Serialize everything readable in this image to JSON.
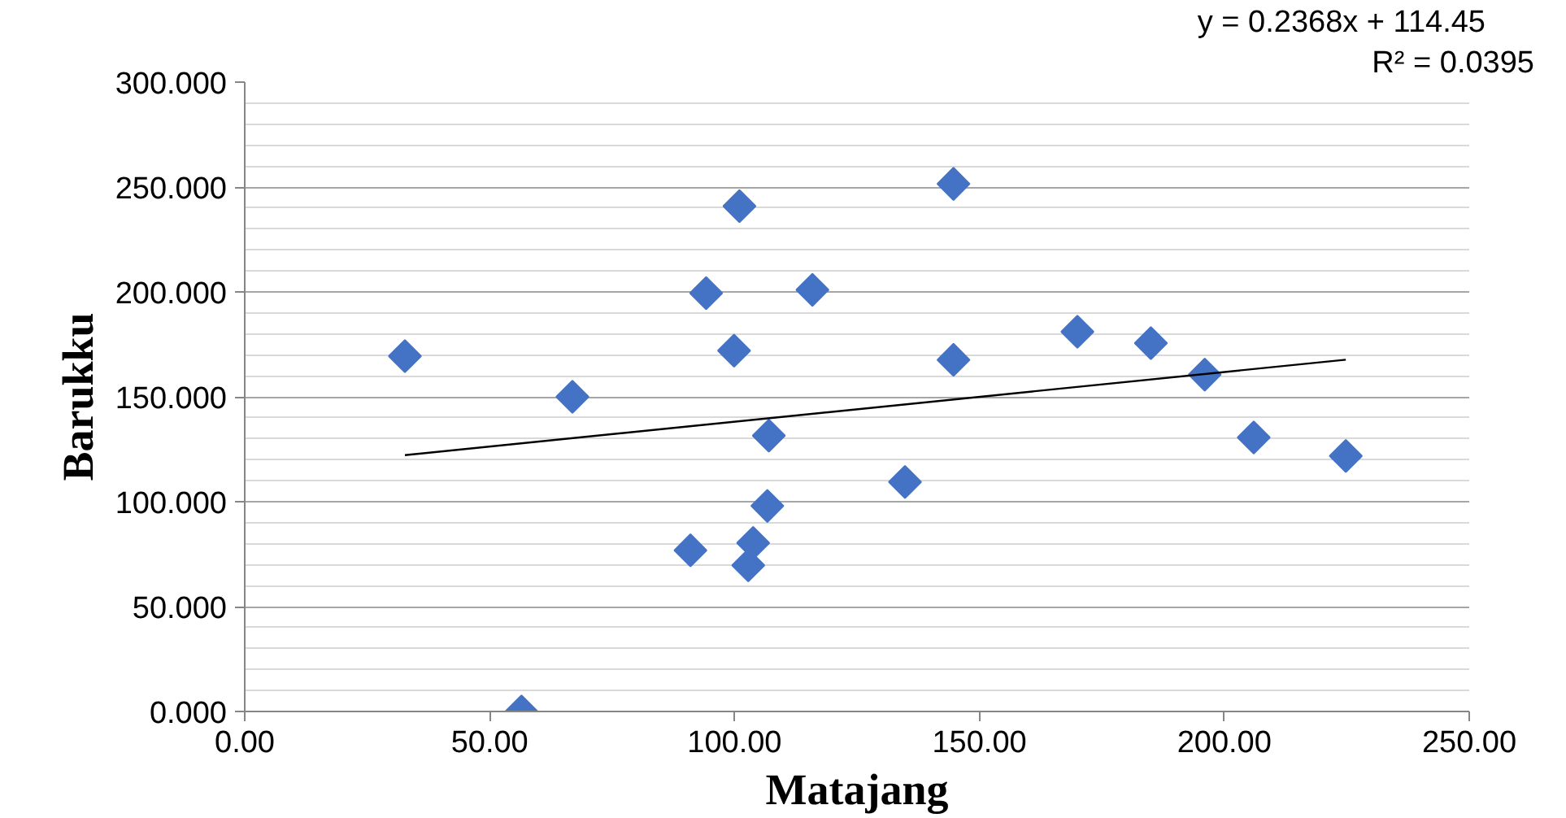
{
  "chart_data": {
    "type": "scatter",
    "xlabel": "Matajang",
    "ylabel": "Barukku",
    "x": [
      32.7,
      56.5,
      66.9,
      91,
      94.2,
      99.9,
      101,
      102.8,
      103.8,
      107,
      106.7,
      115.9,
      134.8,
      144.7,
      144.7,
      170,
      185,
      196,
      206,
      224.8
    ],
    "series": [
      {
        "color": "#4472c4",
        "marker": "diamond",
        "values": [
          169.4,
          0,
          150,
          76.8,
          199.4,
          172,
          240.9,
          69.7,
          80.3,
          131.5,
          98,
          201,
          109.4,
          167.6,
          251.5,
          181,
          175.6,
          160.6,
          130.6,
          121.8
        ]
      },
      {
        "type": "line",
        "color": "#000000",
        "x": [
          32.7,
          224.8
        ],
        "values": [
          122.2,
          167.7
        ]
      }
    ],
    "annotations": [
      "y = 0.2368x + 114.45",
      "R² = 0.0395"
    ],
    "xlim": [
      0,
      250
    ],
    "ylim": [
      0,
      300
    ],
    "xticks": [
      {
        "value": 0,
        "label": "0.00"
      },
      {
        "value": 50,
        "label": "50.00"
      },
      {
        "value": 100,
        "label": "100.00"
      },
      {
        "value": 150,
        "label": "150.00"
      },
      {
        "value": 200,
        "label": "200.00"
      },
      {
        "value": 250,
        "label": "250.00"
      }
    ],
    "yticks": [
      {
        "value": 0,
        "label": "0.000"
      },
      {
        "value": 50,
        "label": "50.000"
      },
      {
        "value": 100,
        "label": "100.000"
      },
      {
        "value": 150,
        "label": "150.000"
      },
      {
        "value": 200,
        "label": "200.000"
      },
      {
        "value": 250,
        "label": "250.000"
      },
      {
        "value": 300,
        "label": "300.000"
      }
    ],
    "grid": "y"
  }
}
